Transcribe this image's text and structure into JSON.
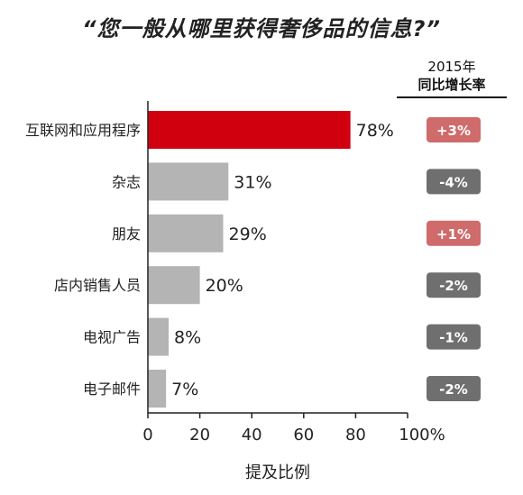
{
  "title": "“您一般从哪里获得奢侈品的信息?”",
  "yoy_header": {
    "line1": "2015年",
    "line2": "同比增长率"
  },
  "colors": {
    "highlight_bar": "#d0000f",
    "bar": "#b4b4b4",
    "badge_positive": "#cf6b6b",
    "badge_negative": "#6f6f6f"
  },
  "chart_data": {
    "type": "bar",
    "orientation": "horizontal",
    "categories": [
      "互联网和应用程序",
      "杂志",
      "朋友",
      "店内销售人员",
      "电视广告",
      "电子邮件"
    ],
    "values": [
      78,
      31,
      29,
      20,
      8,
      7
    ],
    "value_labels": [
      "78%",
      "31%",
      "29%",
      "20%",
      "8%",
      "7%"
    ],
    "yoy_change": [
      "+3%",
      "-4%",
      "+1%",
      "-2%",
      "-1%",
      "-2%"
    ],
    "yoy_sign": [
      1,
      -1,
      1,
      -1,
      -1,
      -1
    ],
    "highlight_index": 0,
    "xlim": [
      0,
      100
    ],
    "xticks": [
      0,
      20,
      40,
      60,
      80,
      100
    ],
    "xtick_labels": [
      "0",
      "20",
      "40",
      "60",
      "80",
      "100%"
    ],
    "xlabel": "提及比例",
    "grid": false
  }
}
